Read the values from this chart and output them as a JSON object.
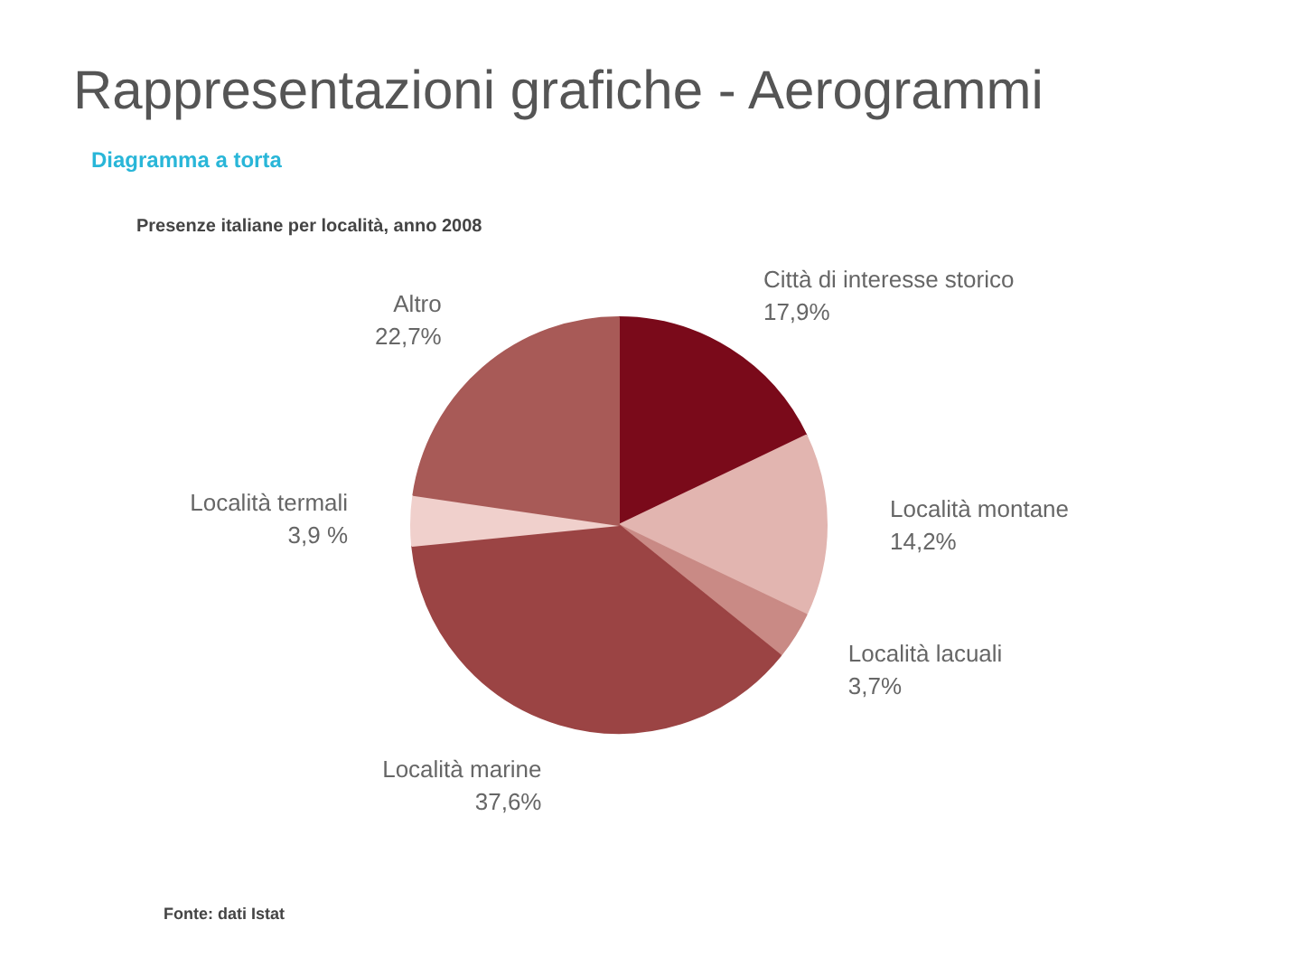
{
  "chart_data": {
    "type": "pie",
    "title": "Rappresentazioni grafiche - Aerogrammi",
    "subtitle": "Diagramma a torta",
    "annotations": [
      "Presenze italiane per località, anno 2008",
      "Fonte: dati Istat"
    ],
    "categories": [
      "Città di interesse storico",
      "Località montane",
      "Località lacuali",
      "Località marine",
      "Località termali",
      "Altro"
    ],
    "values": [
      17.9,
      14.2,
      3.7,
      37.6,
      3.9,
      22.7
    ],
    "value_labels": [
      "17,9%",
      "14,2%",
      "3,7%",
      "37,6%",
      "3,9 %",
      "22,7%"
    ],
    "colors": [
      "#7a0a1a",
      "#e2b5b0",
      "#c98a85",
      "#9b4444",
      "#f0d0cc",
      "#a85a57"
    ]
  }
}
